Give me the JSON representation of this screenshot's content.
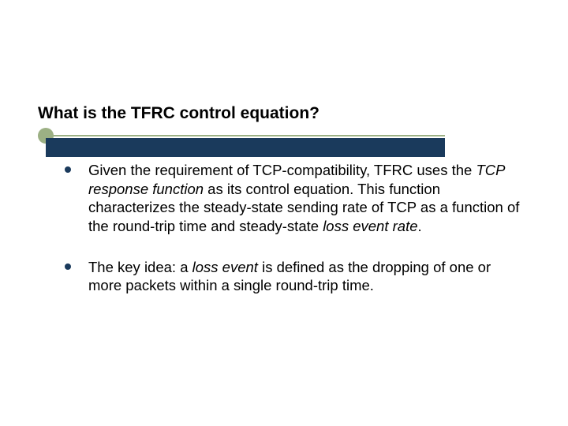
{
  "title": "What is the TFRC control equation?",
  "title_fontsize": 21,
  "title_color": "#000000",
  "title_dot_color": "#9cb084",
  "title_line_color": "#9cb084",
  "title_bar_color": "#1a3a5c",
  "bullet_color": "#1a3a5c",
  "background_color": "#ffffff",
  "body_fontsize": 18.5,
  "body_color": "#000000",
  "bullets": [
    {
      "segments": [
        {
          "text": "Given the requirement of TCP-compatibility, TFRC uses the ",
          "italic": false
        },
        {
          "text": "TCP response function",
          "italic": true
        },
        {
          "text": " as its control equation.  This function characterizes the steady-state sending rate of TCP as a function of the round-trip time and steady-state ",
          "italic": false
        },
        {
          "text": "loss event rate",
          "italic": true
        },
        {
          "text": ".",
          "italic": false
        }
      ]
    },
    {
      "segments": [
        {
          "text": "The key idea: a ",
          "italic": false
        },
        {
          "text": "loss event",
          "italic": true
        },
        {
          "text": " is defined as the dropping of one or more packets within a single round-trip time.",
          "italic": false
        }
      ]
    }
  ]
}
